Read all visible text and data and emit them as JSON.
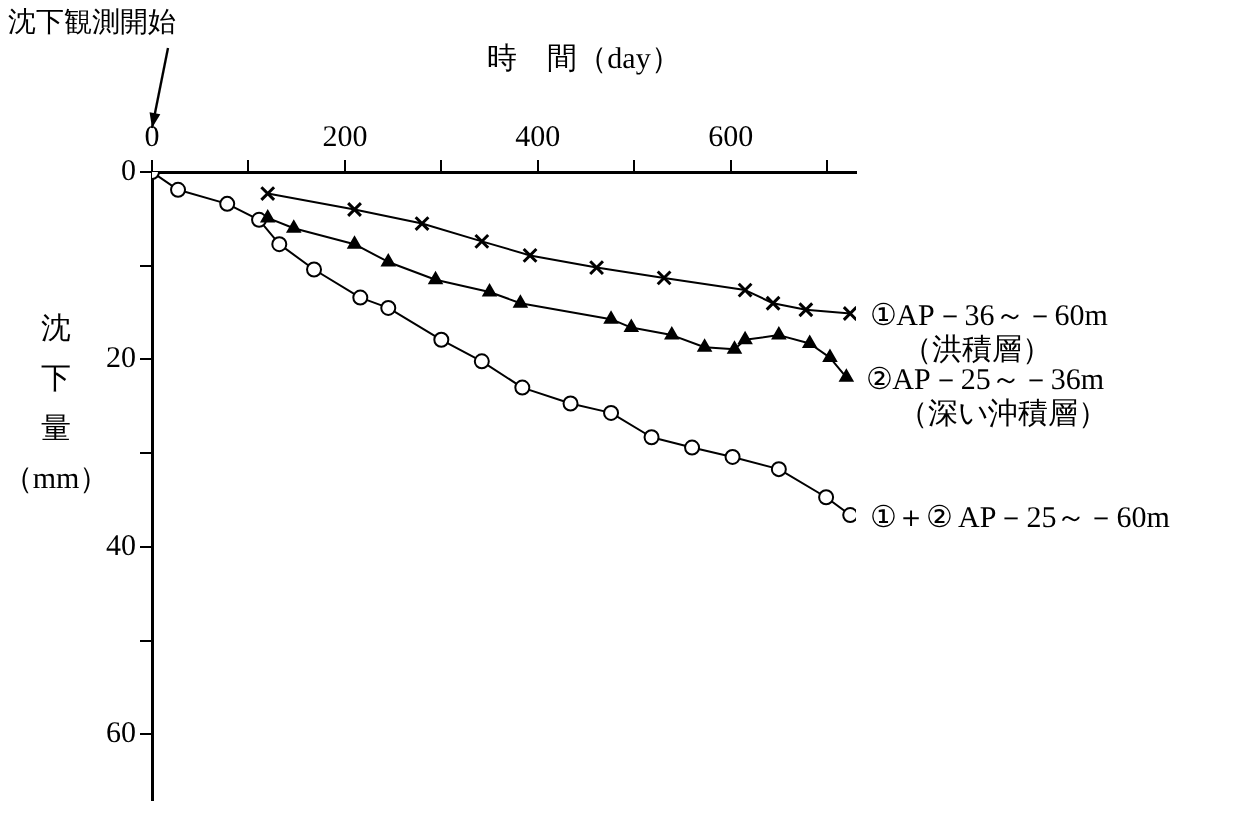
{
  "chart_data": {
    "type": "line",
    "xlabel": "時　間（day）",
    "ylabel": "沈下量（mm）",
    "annotations": [
      "沈下観測開始"
    ],
    "xlim": [
      0,
      730
    ],
    "ylim": [
      67,
      0
    ],
    "xticks": [
      0,
      {
        "value": 100,
        "label": null
      },
      200,
      {
        "value": 300,
        "label": null
      },
      400,
      {
        "value": 500,
        "label": null
      },
      600,
      {
        "value": 700,
        "label": null
      }
    ],
    "yticks": [
      0,
      {
        "value": 10,
        "label": null
      },
      20,
      {
        "value": 30,
        "label": null
      },
      40,
      {
        "value": 50,
        "label": null
      },
      60
    ],
    "grid": false,
    "legend": false,
    "series": [
      {
        "name": "①AP－36～－60m\n（洪積層）",
        "color": "#000000",
        "marker": "cross",
        "x": [
          120,
          210,
          280,
          342,
          392,
          461,
          531,
          615,
          644,
          678,
          724
        ],
        "values": [
          2.3,
          4.0,
          5.5,
          7.4,
          8.9,
          10.2,
          11.3,
          12.6,
          14.0,
          14.7,
          15.1
        ]
      },
      {
        "name": "②AP－25～－36m\n（深い沖積層）",
        "color": "#000000",
        "marker": "triangle",
        "x": [
          120,
          147,
          210,
          245,
          294,
          350,
          382,
          476,
          497,
          539,
          573,
          604,
          615,
          650,
          682,
          703,
          720
        ],
        "values": [
          4.9,
          6.0,
          7.7,
          9.6,
          11.5,
          12.8,
          14.0,
          15.7,
          16.6,
          17.4,
          18.7,
          18.9,
          17.9,
          17.4,
          18.3,
          19.8,
          21.9
        ]
      },
      {
        "name": "①＋② AP－25～－60m",
        "color": "#000000",
        "marker": "circle",
        "x": [
          0,
          27,
          78,
          111,
          132,
          168,
          216,
          245,
          300,
          342,
          384,
          434,
          476,
          518,
          560,
          602,
          650,
          699,
          724
        ],
        "values": [
          0,
          1.9,
          3.4,
          5.1,
          7.7,
          10.4,
          13.4,
          14.5,
          17.9,
          20.2,
          23.0,
          24.7,
          25.7,
          28.3,
          29.4,
          30.4,
          31.7,
          34.7,
          36.6
        ]
      }
    ]
  }
}
